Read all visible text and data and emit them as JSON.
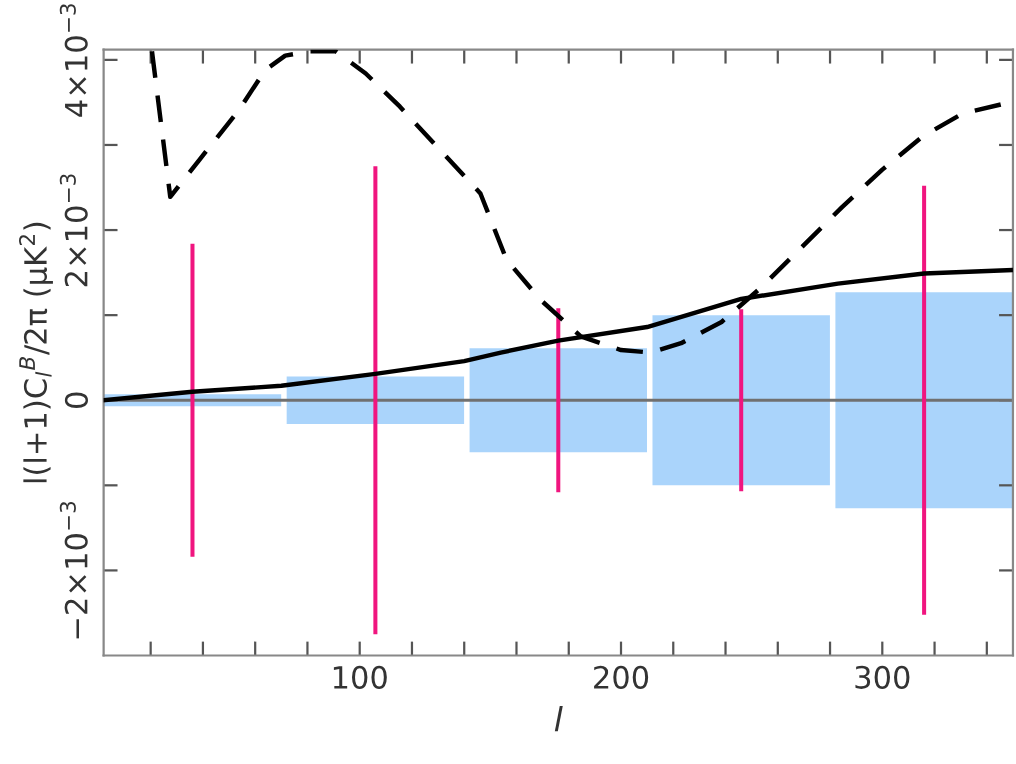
{
  "chart_data": {
    "type": "bar",
    "xlabel": "l",
    "ylabel": "l(l+1)C$_{l}$$^{B}$/2π (μK$^{2}$)",
    "xlim": [
      2,
      350
    ],
    "ylim": [
      -0.003,
      0.00412
    ],
    "xticks": [
      {
        "value": 20,
        "label": null
      },
      {
        "value": 40,
        "label": null
      },
      {
        "value": 60,
        "label": null
      },
      {
        "value": 80,
        "label": null
      },
      100,
      {
        "value": 120,
        "label": null
      },
      {
        "value": 140,
        "label": null
      },
      {
        "value": 160,
        "label": null
      },
      {
        "value": 180,
        "label": null
      },
      200,
      {
        "value": 220,
        "label": null
      },
      {
        "value": 240,
        "label": null
      },
      {
        "value": 260,
        "label": null
      },
      {
        "value": 280,
        "label": null
      },
      300,
      {
        "value": 320,
        "label": null
      },
      {
        "value": 340,
        "label": null
      }
    ],
    "yticks": [
      {
        "value": -0.002,
        "label": "−2×10$^{−3}$"
      },
      {
        "value": -0.001,
        "label": null
      },
      {
        "value": 0,
        "label": "0"
      },
      {
        "value": 0.001,
        "label": null
      },
      {
        "value": 0.002,
        "label": "2×10$^{−3}$"
      },
      {
        "value": 0.003,
        "label": null
      },
      {
        "value": 0.004,
        "label": "4×10$^{−3}$"
      }
    ],
    "grid": false,
    "legend": false,
    "ref_lines": [
      {
        "axis": "y",
        "value": 0,
        "color": "#707070"
      }
    ],
    "series": [
      {
        "color": "#aad4fb",
        "x": [
          36,
          106,
          176,
          246,
          316
        ],
        "base": [
          -7e-05,
          -0.00028,
          -0.00061,
          -0.001,
          -0.00127
        ],
        "values": [
          0.00014,
          0.00056,
          0.00122,
          0.002,
          0.00254
        ]
      },
      {
        "color": "#f0157f",
        "x": [
          36,
          106,
          176,
          246,
          316
        ],
        "base": [
          -0.00184,
          -0.00275,
          -0.00108,
          -0.00107,
          -0.00252
        ],
        "values": [
          0.00368,
          0.0055,
          0.00216,
          0.00214,
          0.00504
        ]
      },
      {
        "type": "line",
        "color": "#000000",
        "line_style": "solid",
        "x": [
          2,
          36,
          70,
          106,
          140,
          154,
          176,
          210,
          246,
          283,
          316,
          350
        ],
        "values": [
          0,
          0.0001,
          0.00017,
          0.00031,
          0.00046,
          0.00056,
          0.0007,
          0.00086,
          0.00119,
          0.00137,
          0.00149,
          0.00153
        ]
      },
      {
        "type": "line",
        "color": "#000000",
        "line_style": "dashed",
        "x": [
          20.5,
          27.5,
          38.5,
          53.8,
          63.8,
          71.5,
          81,
          90.8,
          102.3,
          115.4,
          130.8,
          146.2,
          156.2,
          169.2,
          184.6,
          200,
          211.5,
          223,
          238.5,
          253.8,
          269.2,
          284.6,
          300,
          315.4,
          330.8,
          350
        ],
        "values": [
          0.0041,
          0.00239,
          0.00282,
          0.00341,
          0.00388,
          0.00405,
          0.0041,
          0.0041,
          0.00384,
          0.00345,
          0.00294,
          0.00243,
          0.00165,
          0.00118,
          0.00075,
          0.00059,
          0.00056,
          0.00067,
          0.00092,
          0.00133,
          0.0018,
          0.00227,
          0.00271,
          0.0031,
          0.00337,
          0.00351
        ]
      }
    ]
  }
}
